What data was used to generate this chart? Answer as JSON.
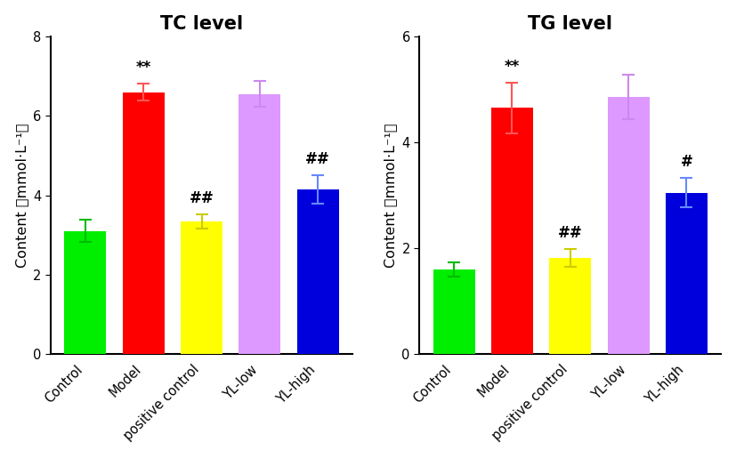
{
  "tc": {
    "title": "TC level",
    "categories": [
      "Control",
      "Model",
      "positive control",
      "YL-low",
      "YL-high"
    ],
    "values": [
      3.1,
      6.6,
      3.35,
      6.55,
      4.15
    ],
    "errors": [
      0.28,
      0.22,
      0.18,
      0.32,
      0.35
    ],
    "bar_colors": [
      "#00ee00",
      "#ff0000",
      "#ffff00",
      "#dd99ff",
      "#0000dd"
    ],
    "error_colors": [
      "#00bb00",
      "#ff5555",
      "#cccc00",
      "#cc88ee",
      "#6688ff"
    ],
    "annotations": [
      "",
      "**",
      "##",
      "",
      "##"
    ],
    "ylim": [
      0,
      8
    ],
    "yticks": [
      0,
      2,
      4,
      6,
      8
    ],
    "ylabel": "Content （mmol·L⁻¹）"
  },
  "tg": {
    "title": "TG level",
    "categories": [
      "Control",
      "Model",
      "positive control",
      "YL-low",
      "YL-high"
    ],
    "values": [
      1.6,
      4.65,
      1.82,
      4.85,
      3.05
    ],
    "errors": [
      0.13,
      0.48,
      0.17,
      0.42,
      0.28
    ],
    "bar_colors": [
      "#00ee00",
      "#ff0000",
      "#ffff00",
      "#dd99ff",
      "#0000dd"
    ],
    "error_colors": [
      "#00bb00",
      "#ff5555",
      "#cccc00",
      "#cc88ee",
      "#6688ff"
    ],
    "annotations": [
      "",
      "**",
      "##",
      "",
      "#"
    ],
    "ylim": [
      0,
      6
    ],
    "yticks": [
      0,
      2,
      4,
      6
    ],
    "ylabel": "Content （mmol·L⁻¹）"
  },
  "bar_width": 0.72,
  "annotation_fontsize": 12,
  "title_fontsize": 15,
  "label_fontsize": 11.5,
  "tick_fontsize": 10.5,
  "capsize": 5
}
